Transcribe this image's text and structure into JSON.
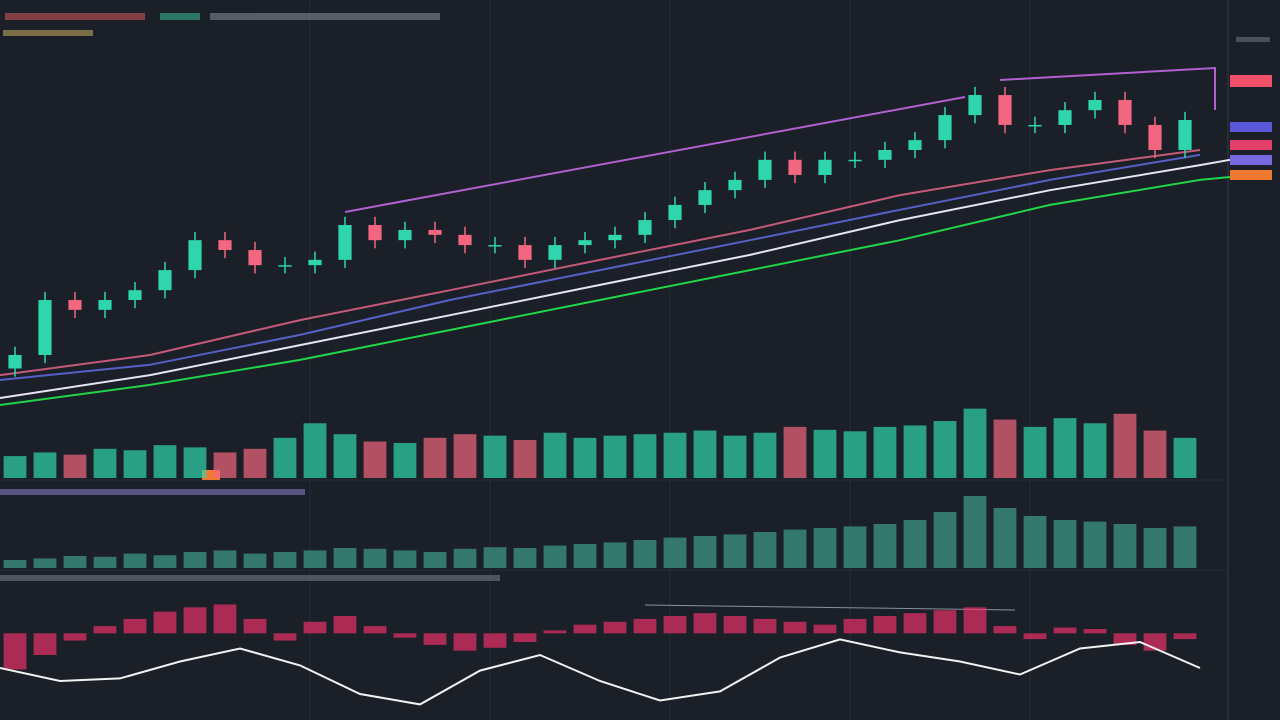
{
  "chart_data": [
    {
      "type": "candlestick",
      "xlim": [
        -0.5,
        40.5
      ],
      "ylim": [
        0,
        100
      ],
      "up_color": "#2fd6ad",
      "down_color": "#f2667f",
      "open": [
        15,
        18.3,
        31.7,
        29.3,
        31.7,
        34.1,
        39,
        46.3,
        43.9,
        40.2,
        40.2,
        41.5,
        50,
        46.3,
        48.8,
        47.6,
        45.1,
        45.1,
        41.5,
        45.1,
        46.3,
        47.6,
        51.2,
        54.9,
        58.5,
        61,
        65.9,
        62.2,
        65.9,
        65.9,
        68.3,
        70.7,
        76.8,
        81.7,
        74.4,
        74.4,
        78,
        80.5,
        74.4,
        68.3
      ],
      "high": [
        20.3,
        33.7,
        33.7,
        33.7,
        36.1,
        41,
        48.3,
        48.3,
        45.9,
        42.2,
        43.5,
        52,
        52,
        50.8,
        50.8,
        49.6,
        47.1,
        47.1,
        47.1,
        48.3,
        49.6,
        53.2,
        56.9,
        60.5,
        63,
        67.9,
        67.9,
        67.9,
        67.9,
        70.3,
        72.7,
        78.8,
        83.7,
        83.7,
        76.4,
        80,
        82.5,
        82.5,
        76.4,
        77.6
      ],
      "low": [
        13,
        16.3,
        27.3,
        27.3,
        29.7,
        32.1,
        37,
        41.9,
        38.2,
        38.2,
        38.2,
        39.5,
        44.3,
        44.3,
        45.6,
        43.1,
        43.1,
        39.5,
        39.5,
        43.1,
        44.3,
        45.6,
        49.2,
        52.9,
        56.5,
        59,
        60.2,
        60.2,
        63.9,
        63.9,
        66.3,
        68.7,
        74.8,
        72.4,
        72.4,
        72.4,
        76,
        72.4,
        66.3,
        66.3
      ],
      "close": [
        18.3,
        31.7,
        29.3,
        31.7,
        34.1,
        39,
        46.3,
        43.9,
        40.2,
        40.2,
        41.5,
        50,
        46.3,
        48.8,
        47.6,
        45.1,
        45.1,
        41.5,
        45.1,
        46.3,
        47.6,
        51.2,
        54.9,
        58.5,
        61,
        65.9,
        62.2,
        65.9,
        65.9,
        68.3,
        70.7,
        76.8,
        81.7,
        74.4,
        74.4,
        78,
        80.5,
        74.4,
        68.3,
        75.6
      ],
      "lines": [
        {
          "color": "#22d44a",
          "x": [
            -0.5,
            4.5,
            9.5,
            14.5,
            19.5,
            24.5,
            29.5,
            34.5,
            39.5,
            40.5
          ],
          "values": [
            6.1,
            11,
            17.1,
            24.4,
            31.7,
            39,
            46.3,
            54.9,
            61,
            61.7
          ]
        },
        {
          "color": "#e8e4f4",
          "x": [
            -0.5,
            4.5,
            9.5,
            14.5,
            19.5,
            24.5,
            29.5,
            34.5,
            39.5,
            40.5
          ],
          "values": [
            7.8,
            13.4,
            20.7,
            28,
            35.4,
            42.7,
            51.2,
            58.5,
            64.6,
            65.9
          ]
        },
        {
          "color": "#5560c8",
          "x": [
            -0.5,
            4.5,
            9.5,
            14.5,
            19.5,
            24.5,
            29.5,
            34.5,
            39.5
          ],
          "values": [
            12.2,
            15.9,
            23.2,
            31.7,
            39,
            46.3,
            53.7,
            61,
            67.1
          ]
        },
        {
          "color": "#c45a78",
          "x": [
            -0.5,
            4.5,
            9.5,
            14.5,
            19.5,
            24.5,
            29.5,
            34.5,
            39.5
          ],
          "values": [
            13.4,
            18.3,
            26.8,
            34.1,
            41.5,
            48.8,
            57.3,
            63.4,
            68.3
          ]
        }
      ]
    },
    {
      "type": "bar",
      "ylim": [
        0,
        100
      ],
      "values": [
        30,
        35,
        32,
        40,
        38,
        45,
        42,
        35,
        40,
        55,
        75,
        60,
        50,
        48,
        55,
        60,
        58,
        52,
        62,
        55,
        58,
        60,
        62,
        65,
        58,
        62,
        70,
        66,
        64,
        70,
        72,
        78,
        95,
        80,
        70,
        82,
        75,
        88,
        65,
        55
      ]
    },
    {
      "type": "bar",
      "ylim": [
        0,
        100
      ],
      "color": "#3f9e8c",
      "values": [
        10,
        12,
        15,
        14,
        18,
        16,
        20,
        22,
        18,
        20,
        22,
        25,
        24,
        22,
        20,
        24,
        26,
        25,
        28,
        30,
        32,
        35,
        38,
        40,
        42,
        45,
        48,
        50,
        52,
        55,
        60,
        70,
        90,
        75,
        65,
        60,
        58,
        55,
        50,
        52
      ]
    },
    {
      "type": "bar",
      "ylim": [
        -60,
        30
      ],
      "color": "#e8306a",
      "values": [
        -25,
        -15,
        -5,
        5,
        10,
        15,
        18,
        20,
        10,
        -5,
        8,
        12,
        5,
        -3,
        -8,
        -12,
        -10,
        -6,
        2,
        6,
        8,
        10,
        12,
        14,
        12,
        10,
        8,
        6,
        10,
        12,
        14,
        16,
        18,
        5,
        -4,
        4,
        3,
        -8,
        -12,
        -4
      ],
      "y2lim": [
        0,
        100
      ],
      "lines": [
        {
          "color": "#f2f2f2",
          "axis": "y2",
          "x": [
            -0.5,
            1.5,
            3.5,
            5.5,
            7.5,
            9.5,
            11.5,
            13.5,
            15.5,
            17.5,
            19.5,
            21.5,
            23.5,
            25.5,
            27.5,
            29.5,
            31.5,
            33.5,
            35.5,
            37.5,
            39.5
          ],
          "values": [
            40,
            30,
            32,
            45,
            55,
            42,
            20,
            12,
            38,
            50,
            30,
            15,
            22,
            48,
            62,
            52,
            45,
            35,
            55,
            60,
            40
          ]
        }
      ]
    }
  ]
}
